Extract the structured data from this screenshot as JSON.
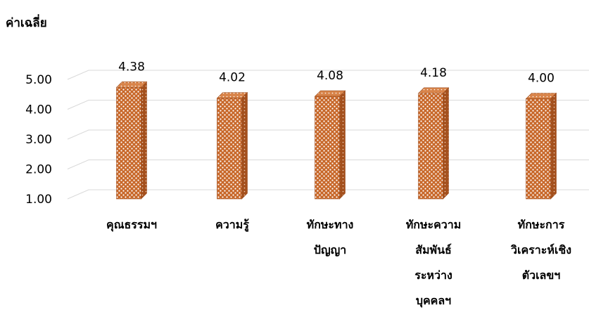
{
  "chart_data": {
    "type": "bar",
    "ylabel": "ค่าเฉลี่ย",
    "ylim": [
      1,
      5
    ],
    "yticks": [
      "1.00",
      "2.00",
      "3.00",
      "4.00",
      "5.00"
    ],
    "grid": true,
    "categories": [
      [
        "คุณธรรมฯ"
      ],
      [
        "ความรู้"
      ],
      [
        "ทักษะทาง",
        "ปัญญา"
      ],
      [
        "ทักษะความ",
        "สัมพันธ์",
        "ระหว่าง",
        "บุคคลฯ"
      ],
      [
        "ทักษะการ",
        "วิเคราะห์เชิง",
        "ตัวเลขฯ"
      ]
    ],
    "values": [
      4.38,
      4.02,
      4.08,
      4.18,
      4.0
    ],
    "data_labels": [
      "4.38",
      "4.02",
      "4.08",
      "4.18",
      "4.00"
    ],
    "bar_color": "#c46a2e"
  }
}
